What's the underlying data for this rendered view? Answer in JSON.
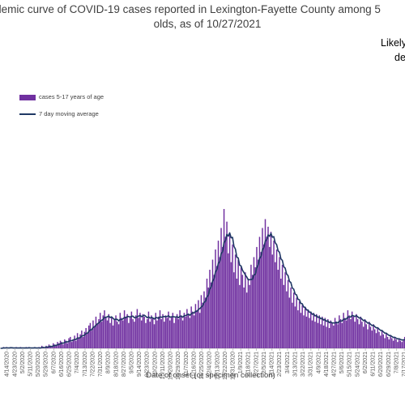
{
  "chart_data": {
    "type": "bar",
    "title_line_1": "demic curve of COVID-19 cases reported in Lexington-Fayette County among 5",
    "title_line_2": "olds, as of 10/27/2021",
    "note_line_1": "Likely",
    "note_line_2": "de",
    "xlabel": "Date of onset (or specimen collection)",
    "ylabel": "",
    "legend_position": "top-left",
    "grid": false,
    "series": [
      {
        "name": "cases 5-17 years of age",
        "kind": "bar",
        "color": "#7030a0",
        "values": [
          0,
          0,
          1,
          0,
          1,
          0,
          0,
          1,
          0,
          0,
          0,
          1,
          0,
          0,
          1,
          0,
          0,
          0,
          1,
          0,
          1,
          0,
          0,
          0,
          1,
          0,
          0,
          1,
          0,
          2,
          1,
          0,
          2,
          1,
          3,
          2,
          1,
          4,
          3,
          2,
          5,
          4,
          6,
          5,
          3,
          7,
          6,
          4,
          8,
          9,
          5,
          7,
          10,
          6,
          12,
          8,
          11,
          14,
          9,
          13,
          16,
          12,
          18,
          20,
          14,
          22,
          17,
          25,
          19,
          23,
          28,
          21,
          26,
          30,
          24,
          22,
          27,
          20,
          25,
          18,
          23,
          26,
          21,
          19,
          28,
          24,
          22,
          30,
          25,
          27,
          20,
          24,
          29,
          23,
          21,
          26,
          31,
          24,
          28,
          22,
          27,
          25,
          20,
          23,
          29,
          21,
          26,
          24,
          19,
          28,
          22,
          25,
          30,
          23,
          27,
          21,
          26,
          24,
          29,
          22,
          25,
          28,
          20,
          24,
          27,
          23,
          30,
          26,
          22,
          28,
          25,
          31,
          27,
          24,
          33,
          29,
          26,
          35,
          30,
          38,
          28,
          42,
          36,
          45,
          40,
          55,
          48,
          62,
          52,
          70,
          58,
          78,
          65,
          85,
          72,
          95,
          80,
          110,
          88,
          100,
          75,
          90,
          68,
          82,
          60,
          74,
          55,
          70,
          50,
          64,
          58,
          48,
          60,
          44,
          55,
          50,
          66,
          58,
          72,
          64,
          80,
          70,
          88,
          76,
          95,
          82,
          102,
          88,
          96,
          80,
          92,
          74,
          85,
          68,
          78,
          62,
          72,
          55,
          66,
          50,
          60,
          45,
          54,
          40,
          48,
          36,
          44,
          33,
          40,
          30,
          37,
          28,
          34,
          26,
          32,
          25,
          30,
          24,
          29,
          22,
          28,
          21,
          27,
          20,
          26,
          19,
          25,
          18,
          24,
          17,
          23,
          16,
          22,
          20,
          18,
          24,
          21,
          19,
          26,
          23,
          20,
          28,
          24,
          22,
          30,
          26,
          23,
          29,
          25,
          21,
          27,
          23,
          19,
          25,
          21,
          17,
          23,
          19,
          15,
          21,
          17,
          14,
          19,
          15,
          12,
          16,
          13,
          10,
          14,
          11,
          8,
          12,
          9,
          7,
          10,
          8,
          6,
          9,
          7,
          5,
          8,
          6,
          5,
          7,
          9,
          12,
          16,
          22,
          30,
          40,
          52,
          46,
          38,
          44,
          34,
          40
        ],
        "max_value": 110
      },
      {
        "name": "7 day moving average",
        "kind": "line",
        "color": "#1f3864"
      }
    ],
    "x_tick_labels": [
      "4/14/2020",
      "4/23/2020",
      "5/2/2020",
      "5/11/2020",
      "5/20/2020",
      "5/29/2020",
      "6/7/2020",
      "6/16/2020",
      "6/25/2020",
      "7/4/2020",
      "7/13/2020",
      "7/22/2020",
      "7/31/2020",
      "8/9/2020",
      "8/18/2020",
      "8/27/2020",
      "9/5/2020",
      "9/14/2020",
      "9/23/2020",
      "10/2/2020",
      "10/11/2020",
      "10/20/2020",
      "10/29/2020",
      "11/7/2020",
      "11/16/2020",
      "11/25/2020",
      "12/4/2020",
      "12/13/2020",
      "12/22/2020",
      "12/31/2020",
      "1/9/2021",
      "1/18/2021",
      "1/27/2021",
      "2/5/2021",
      "2/14/2021",
      "2/23/2021",
      "3/4/2021",
      "3/13/2021",
      "3/22/2021",
      "3/31/2021",
      "4/9/2021",
      "4/18/2021",
      "4/27/2021",
      "5/6/2021",
      "5/15/2021",
      "5/24/2021",
      "6/2/2021",
      "6/11/2021",
      "6/20/2021",
      "6/29/2021",
      "7/8/2021",
      "7/17/2021"
    ]
  }
}
